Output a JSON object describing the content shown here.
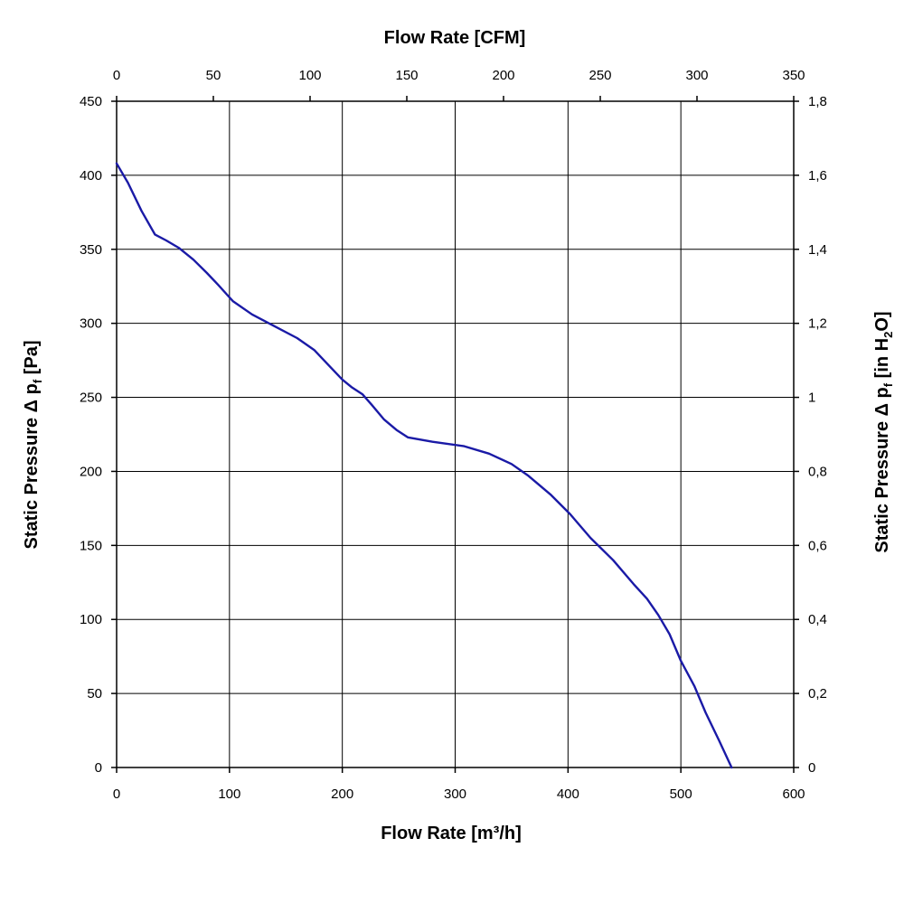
{
  "chart_data": {
    "type": "line",
    "x_bottom": {
      "label": "Flow Rate [m³/h]",
      "range": [
        0,
        600
      ],
      "ticks": [
        "0",
        "100",
        "200",
        "300",
        "400",
        "500",
        "600"
      ]
    },
    "x_top": {
      "label": "Flow Rate [CFM]",
      "range": [
        0,
        350
      ],
      "ticks": [
        "0",
        "50",
        "100",
        "150",
        "200",
        "250",
        "300",
        "350"
      ]
    },
    "y_left": {
      "label_main": "Static Pressure Δ p",
      "label_sub": "f",
      "label_unit": " [Pa]",
      "range": [
        0,
        450
      ],
      "ticks": [
        "0",
        "50",
        "100",
        "150",
        "200",
        "250",
        "300",
        "350",
        "400",
        "450"
      ]
    },
    "y_right": {
      "label_main": "Static Pressure Δ p",
      "label_sub": "f",
      "label_unit_pre": " [in H",
      "label_unit_sub": "2",
      "label_unit_post": "O]",
      "range": [
        0,
        1.8
      ],
      "ticks": [
        "0",
        "0,2",
        "0,4",
        "0,6",
        "0,8",
        "1",
        "1,2",
        "1,4",
        "1,6",
        "1,8"
      ]
    },
    "grid": true,
    "series": [
      {
        "color": "#1a1aa6",
        "x": [
          0,
          10,
          22,
          34,
          44,
          55,
          68,
          80,
          90,
          103,
          120,
          140,
          160,
          175,
          190,
          200,
          208,
          218,
          226,
          237,
          248,
          258,
          280,
          308,
          330,
          350,
          365,
          385,
          402,
          420,
          440,
          458,
          470,
          480,
          490,
          500,
          512,
          522,
          534,
          545
        ],
        "y": [
          408,
          395,
          376,
          360,
          356,
          351,
          343,
          334,
          326,
          315,
          306,
          298,
          290,
          282,
          270,
          262,
          257,
          252,
          245,
          235,
          228,
          223,
          220,
          217,
          212,
          205,
          197,
          184,
          171,
          155,
          140,
          124,
          114,
          103,
          90,
          72,
          55,
          37,
          18,
          0
        ]
      }
    ]
  }
}
